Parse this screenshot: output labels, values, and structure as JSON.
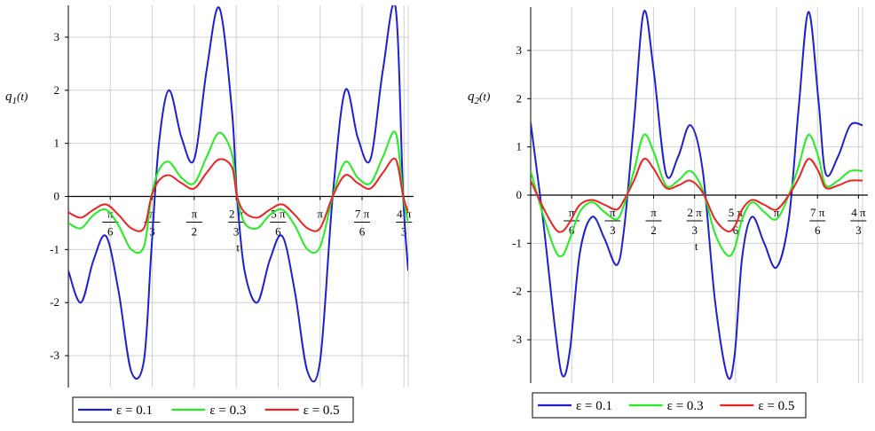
{
  "chart_data": [
    {
      "type": "line",
      "id": "left",
      "ylabel": "q1(t)",
      "ylabel_main": "q",
      "ylabel_sub": "1",
      "ylabel_tail": "(t)",
      "xlabel": "t",
      "x_unit": "pi",
      "xlim": [
        0,
        1.35
      ],
      "ylim": [
        -3.6,
        3.6
      ],
      "grid": true,
      "yticks": [
        -3,
        -2,
        -1,
        0,
        1,
        2,
        3
      ],
      "ytick_labels": [
        "-3",
        "-2",
        "-1",
        "0",
        "1",
        "2",
        "3"
      ],
      "xticks": [
        {
          "value": 0.1667,
          "num": "π",
          "den": "6"
        },
        {
          "value": 0.3333,
          "num": "π",
          "den": "3"
        },
        {
          "value": 0.5,
          "num": "π",
          "den": "2"
        },
        {
          "value": 0.6667,
          "num": "2 π",
          "den": "3"
        },
        {
          "value": 0.8333,
          "num": "5 π",
          "den": "6"
        },
        {
          "value": 1.0,
          "num": "π",
          "den": ""
        },
        {
          "value": 1.1667,
          "num": "7 π",
          "den": "6"
        },
        {
          "value": 1.3333,
          "num": "4 π",
          "den": "3"
        }
      ],
      "x": [
        0,
        0.05,
        0.1,
        0.15,
        0.2,
        0.25,
        0.3,
        0.33,
        0.36,
        0.4,
        0.45,
        0.5,
        0.55,
        0.6,
        0.65,
        0.67,
        0.7,
        0.75,
        0.8,
        0.85,
        0.9,
        0.95,
        1.0,
        1.05,
        1.1,
        1.15,
        1.2,
        1.25,
        1.3,
        1.33,
        1.35
      ],
      "series": [
        {
          "name": "ε = 0.1",
          "color": "#1f1fd0",
          "values": [
            -1.4,
            -2.0,
            -1.2,
            -0.75,
            -1.8,
            -3.3,
            -3.1,
            -1.0,
            1.0,
            2.0,
            1.1,
            0.7,
            2.4,
            3.55,
            1.6,
            0.0,
            -1.4,
            -2.0,
            -1.2,
            -0.75,
            -1.8,
            -3.3,
            -3.1,
            0.0,
            2.0,
            1.1,
            0.7,
            2.4,
            3.55,
            0.0,
            -1.4
          ]
        },
        {
          "name": "ε = 0.3",
          "color": "#22ee22",
          "values": [
            -0.5,
            -0.6,
            -0.35,
            -0.25,
            -0.55,
            -1.0,
            -0.95,
            0.0,
            0.5,
            0.65,
            0.35,
            0.25,
            0.75,
            1.2,
            0.8,
            0.0,
            -0.5,
            -0.6,
            -0.35,
            -0.25,
            -0.55,
            -1.0,
            -0.95,
            0.0,
            0.65,
            0.35,
            0.25,
            0.75,
            1.2,
            0.0,
            -0.5
          ]
        },
        {
          "name": "ε = 0.5",
          "color": "#ee2222",
          "values": [
            -0.3,
            -0.4,
            -0.25,
            -0.15,
            -0.35,
            -0.6,
            -0.6,
            0.0,
            0.3,
            0.4,
            0.25,
            0.15,
            0.45,
            0.7,
            0.55,
            0.0,
            -0.3,
            -0.4,
            -0.25,
            -0.15,
            -0.35,
            -0.6,
            -0.6,
            0.0,
            0.4,
            0.25,
            0.15,
            0.45,
            0.7,
            0.0,
            -0.3
          ]
        }
      ]
    },
    {
      "type": "line",
      "id": "right",
      "ylabel": "q2(t)",
      "ylabel_main": "q",
      "ylabel_sub": "2",
      "ylabel_tail": "(t)",
      "xlabel": "t",
      "x_unit": "pi",
      "xlim": [
        0,
        1.35
      ],
      "ylim": [
        -3.9,
        3.9
      ],
      "grid": true,
      "yticks": [
        -3,
        -2,
        -1,
        0,
        1,
        2,
        3
      ],
      "ytick_labels": [
        "-3",
        "-2",
        "-1",
        "0",
        "1",
        "2",
        "3"
      ],
      "xticks": [
        {
          "value": 0.1667,
          "num": "π",
          "den": "6"
        },
        {
          "value": 0.3333,
          "num": "π",
          "den": "3"
        },
        {
          "value": 0.5,
          "num": "π",
          "den": "2"
        },
        {
          "value": 0.6667,
          "num": "2 π",
          "den": "3"
        },
        {
          "value": 0.8333,
          "num": "5 π",
          "den": "6"
        },
        {
          "value": 1.0,
          "num": "π",
          "den": ""
        },
        {
          "value": 1.1667,
          "num": "7 π",
          "den": "6"
        },
        {
          "value": 1.3333,
          "num": "4 π",
          "den": "3"
        }
      ],
      "x": [
        0,
        0.05,
        0.1,
        0.13,
        0.16,
        0.2,
        0.25,
        0.3,
        0.35,
        0.38,
        0.42,
        0.46,
        0.5,
        0.55,
        0.6,
        0.65,
        0.7,
        0.75,
        0.8,
        0.83,
        0.86,
        0.9,
        0.95,
        1.0,
        1.05,
        1.09,
        1.13,
        1.17,
        1.2,
        1.25,
        1.3,
        1.35
      ],
      "series": [
        {
          "name": "ε = 0.1",
          "color": "#1f1fd0",
          "values": [
            1.5,
            -0.5,
            -2.8,
            -3.75,
            -3.2,
            -1.2,
            -0.45,
            -0.9,
            -1.45,
            -0.7,
            1.5,
            3.8,
            2.6,
            0.45,
            0.8,
            1.45,
            0.5,
            -2.2,
            -3.75,
            -3.3,
            -1.3,
            -0.45,
            -1.0,
            -1.5,
            -0.5,
            1.8,
            3.8,
            2.0,
            0.45,
            0.8,
            1.45,
            1.45
          ]
        },
        {
          "name": "ε = 0.3",
          "color": "#22ee22",
          "values": [
            0.5,
            -0.4,
            -1.15,
            -1.25,
            -0.9,
            -0.35,
            -0.15,
            -0.35,
            -0.5,
            -0.2,
            0.5,
            1.25,
            0.9,
            0.2,
            0.3,
            0.5,
            0.1,
            -0.8,
            -1.25,
            -1.1,
            -0.5,
            -0.15,
            -0.35,
            -0.5,
            0.0,
            0.6,
            1.25,
            0.8,
            0.2,
            0.3,
            0.5,
            0.5
          ]
        },
        {
          "name": "ε = 0.5",
          "color": "#ee2222",
          "values": [
            0.3,
            -0.25,
            -0.7,
            -0.75,
            -0.55,
            -0.2,
            -0.1,
            -0.2,
            -0.3,
            -0.1,
            0.3,
            0.75,
            0.55,
            0.15,
            0.2,
            0.3,
            0.05,
            -0.5,
            -0.75,
            -0.65,
            -0.3,
            -0.1,
            -0.2,
            -0.3,
            0.0,
            0.35,
            0.75,
            0.5,
            0.15,
            0.2,
            0.3,
            0.3
          ]
        }
      ]
    }
  ]
}
